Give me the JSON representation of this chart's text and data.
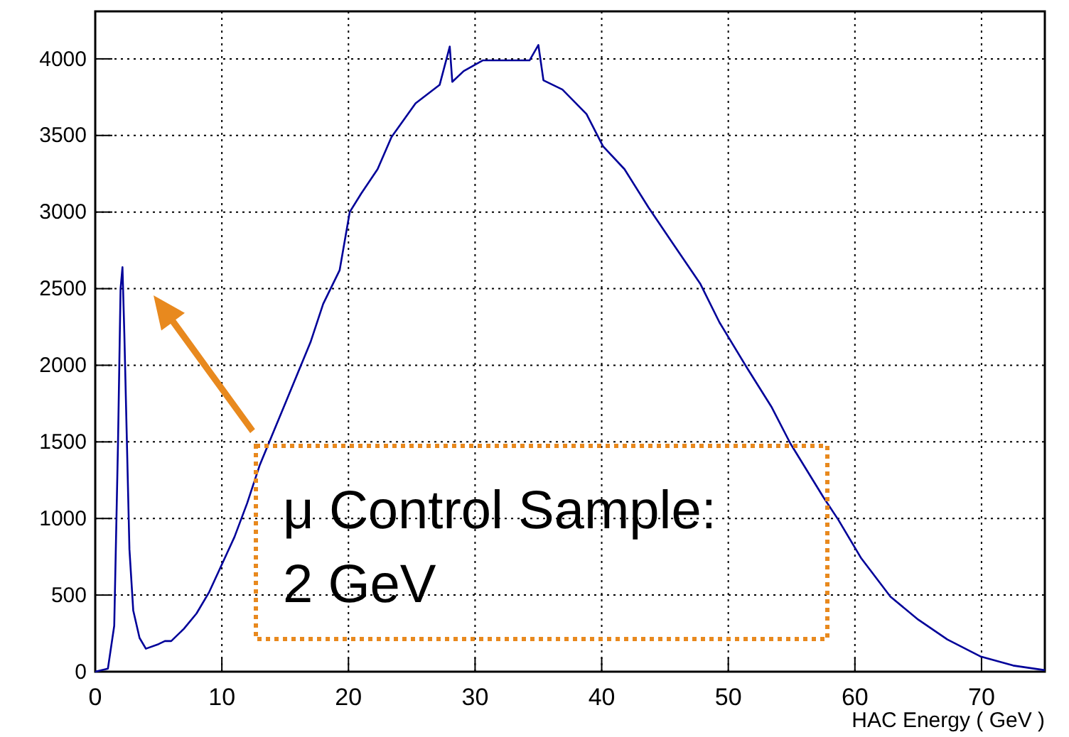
{
  "chart_data": {
    "type": "line",
    "xlabel": "HAC Energy ( GeV )",
    "xlim": [
      0,
      75
    ],
    "ylim": [
      0,
      4310
    ],
    "xticks": [
      0,
      10,
      20,
      30,
      40,
      50,
      60,
      70
    ],
    "yticks": [
      0,
      500,
      1000,
      1500,
      2000,
      2500,
      3000,
      3500,
      4000
    ],
    "grid": true,
    "line_style": "solid",
    "marker": "none",
    "annotations": [
      "μ Control Sample:\n2 GeV"
    ],
    "series": [
      {
        "color": "#000099",
        "x": [
          0,
          1,
          1.5,
          1.8,
          2,
          2.15,
          2.3,
          2.5,
          2.7,
          3,
          3.5,
          4,
          5,
          5.5,
          6,
          7,
          8,
          9,
          10,
          11,
          12,
          13,
          14,
          15,
          16,
          17,
          18,
          19.3,
          20.1,
          21,
          22.3,
          23.4,
          25.3,
          27.2,
          28,
          28.2,
          29.1,
          30.6,
          32.4,
          34.3,
          35,
          35.4,
          36.9,
          38.8,
          40.1,
          41.8,
          43.7,
          45.5,
          47.8,
          49.3,
          51.5,
          53.4,
          54.9,
          57.5,
          58.7,
          60.5,
          62.8,
          65,
          67.3,
          69.9,
          72.5,
          75
        ],
        "values": [
          0,
          20,
          300,
          1500,
          2500,
          2640,
          2200,
          1500,
          800,
          400,
          220,
          150,
          180,
          200,
          200,
          280,
          380,
          520,
          700,
          880,
          1100,
          1350,
          1550,
          1750,
          1950,
          2150,
          2400,
          2620,
          3000,
          3120,
          3280,
          3490,
          3710,
          3830,
          4080,
          3850,
          3920,
          3990,
          3990,
          3990,
          4090,
          3860,
          3800,
          3640,
          3430,
          3280,
          3030,
          2810,
          2530,
          2280,
          1980,
          1730,
          1490,
          1140,
          990,
          740,
          490,
          340,
          210,
          100,
          40,
          10
        ]
      }
    ]
  }
}
